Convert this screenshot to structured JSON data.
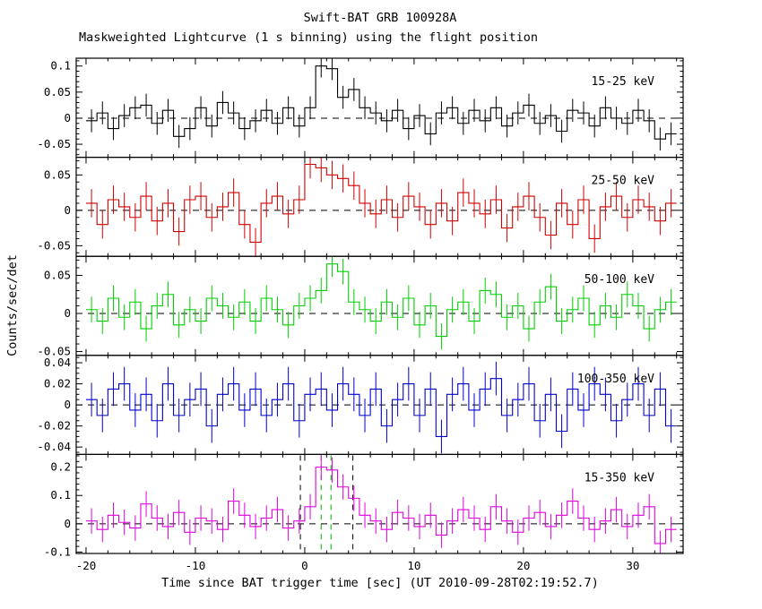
{
  "chart_data": {
    "type": "line",
    "subtype": "step-histogram-lightcurve",
    "title": "Swift-BAT GRB 100928A",
    "subtitle": "Maskweighted Lightcurve (1 s binning) using the flight position",
    "xlabel": "Time since BAT trigger time [sec] (UT 2010-09-28T02:19:52.7)",
    "ylabel": "Counts/sec/det",
    "xlim": [
      -20.9,
      34.6
    ],
    "xticks": [
      -20,
      -10,
      0,
      10,
      20,
      30
    ],
    "xtick_minor_step": 2,
    "bin_width": 1,
    "grid": false,
    "legend_position": "inside-top-right-per-panel",
    "x": [
      -20,
      -19,
      -18,
      -17,
      -16,
      -15,
      -14,
      -13,
      -12,
      -11,
      -10,
      -9,
      -8,
      -7,
      -6,
      -5,
      -4,
      -3,
      -2,
      -1,
      0,
      1,
      2,
      3,
      4,
      5,
      6,
      7,
      8,
      9,
      10,
      11,
      12,
      13,
      14,
      15,
      16,
      17,
      18,
      19,
      20,
      21,
      22,
      23,
      24,
      25,
      26,
      27,
      28,
      29,
      30,
      31,
      32,
      33
    ],
    "panels": [
      {
        "label": "15-25 keV",
        "color": "#000000",
        "ylim": [
          -0.075,
          0.115
        ],
        "yticks": [
          -0.05,
          0,
          0.05,
          0.1
        ],
        "ytick_minor_step": 0.01,
        "yerr": 0.022,
        "values": [
          -0.005,
          0.01,
          -0.02,
          0.005,
          0.02,
          0.025,
          -0.01,
          0.015,
          -0.035,
          -0.02,
          0.02,
          -0.015,
          0.03,
          0.01,
          -0.02,
          -0.005,
          0.015,
          -0.01,
          0.02,
          -0.015,
          0.02,
          0.1,
          0.095,
          0.04,
          0.055,
          0.02,
          0.01,
          -0.005,
          0.015,
          -0.02,
          0.005,
          -0.03,
          0.01,
          0.02,
          -0.01,
          0.015,
          -0.005,
          0.02,
          -0.015,
          0.01,
          0.025,
          -0.01,
          0.005,
          -0.025,
          0.015,
          0.01,
          -0.015,
          0.02,
          0,
          -0.01,
          0.015,
          -0.005,
          -0.04,
          -0.03
        ]
      },
      {
        "label": "25-50 keV",
        "color": "#d00000",
        "ylim": [
          -0.065,
          0.075
        ],
        "yticks": [
          -0.05,
          0,
          0.05
        ],
        "ytick_minor_step": 0.01,
        "yerr": 0.02,
        "values": [
          0.01,
          -0.02,
          0.015,
          0.005,
          -0.01,
          0.02,
          -0.015,
          0.01,
          -0.03,
          0.015,
          0.02,
          -0.01,
          0.005,
          0.025,
          -0.02,
          -0.045,
          0.01,
          0.02,
          -0.005,
          0.015,
          0.065,
          0.06,
          0.05,
          0.045,
          0.035,
          0.01,
          -0.005,
          0.015,
          -0.01,
          0.02,
          0.005,
          -0.02,
          0.01,
          -0.015,
          0.025,
          0.01,
          -0.005,
          0.015,
          -0.025,
          0.005,
          0.02,
          -0.01,
          -0.035,
          0.01,
          -0.02,
          0.015,
          -0.04,
          0.005,
          0.02,
          -0.01,
          0.015,
          0.005,
          -0.015,
          0.01
        ]
      },
      {
        "label": "50-100 keV",
        "color": "#00d000",
        "ylim": [
          -0.055,
          0.075
        ],
        "yticks": [
          -0.05,
          0,
          0.05
        ],
        "ytick_minor_step": 0.01,
        "yerr": 0.017,
        "values": [
          0.005,
          -0.01,
          0.02,
          -0.005,
          0.015,
          -0.02,
          0.01,
          0.025,
          -0.015,
          0.005,
          -0.01,
          0.02,
          0.01,
          -0.005,
          0.015,
          -0.01,
          0.02,
          0.005,
          -0.015,
          0.01,
          0.02,
          0.03,
          0.065,
          0.055,
          0.015,
          0.005,
          -0.01,
          0.015,
          -0.005,
          0.02,
          -0.015,
          0.01,
          -0.03,
          0.005,
          0.015,
          -0.01,
          0.03,
          0.025,
          -0.005,
          0.01,
          -0.02,
          0.015,
          0.035,
          -0.01,
          0.005,
          0.02,
          -0.015,
          0.01,
          -0.005,
          0.025,
          0.01,
          -0.02,
          0.005,
          0.015
        ]
      },
      {
        "label": "100-350 keV",
        "color": "#0000d0",
        "ylim": [
          -0.047,
          0.047
        ],
        "yticks": [
          -0.04,
          -0.02,
          0,
          0.02,
          0.04
        ],
        "ytick_minor_step": 0.005,
        "yerr": 0.016,
        "values": [
          0.005,
          -0.01,
          0.015,
          0.02,
          -0.005,
          0.01,
          -0.015,
          0.02,
          -0.01,
          0.005,
          0.015,
          -0.02,
          0.01,
          0.02,
          -0.005,
          0.015,
          -0.01,
          0.005,
          0.02,
          -0.015,
          0.01,
          0.015,
          -0.005,
          0.02,
          0.01,
          -0.01,
          0.015,
          -0.02,
          0.005,
          0.02,
          -0.01,
          0.015,
          -0.03,
          0.01,
          0.02,
          -0.005,
          0.015,
          0.025,
          -0.01,
          0.005,
          0.02,
          -0.015,
          0.01,
          -0.025,
          0.015,
          -0.005,
          0.02,
          0.01,
          -0.015,
          0.005,
          0.02,
          -0.01,
          0.015,
          -0.02
        ]
      },
      {
        "label": "15-350 keV",
        "color": "#e000e0",
        "ylim": [
          -0.105,
          0.245
        ],
        "yticks": [
          -0.1,
          0,
          0.1,
          0.2
        ],
        "ytick_minor_step": 0.02,
        "yerr": 0.045,
        "values": [
          0.01,
          -0.02,
          0.03,
          0.005,
          -0.015,
          0.07,
          0.02,
          -0.01,
          0.04,
          -0.03,
          0.02,
          0.01,
          -0.02,
          0.08,
          0.03,
          -0.01,
          0.02,
          0.05,
          -0.015,
          0.01,
          0.06,
          0.2,
          0.19,
          0.13,
          0.09,
          0.03,
          0.01,
          -0.02,
          0.04,
          0.02,
          -0.01,
          0.03,
          -0.04,
          0.01,
          0.05,
          0.02,
          -0.02,
          0.06,
          0.01,
          -0.03,
          0.02,
          0.04,
          -0.01,
          0.03,
          0.08,
          0.02,
          -0.02,
          0.01,
          0.05,
          -0.01,
          0.03,
          0.06,
          -0.07,
          -0.02
        ],
        "vlines": [
          {
            "x": -0.4,
            "color": "#000000",
            "style": "dashed"
          },
          {
            "x": 4.4,
            "color": "#000000",
            "style": "dashed"
          },
          {
            "x": 1.5,
            "color": "#00aa00",
            "style": "dashed"
          },
          {
            "x": 2.4,
            "color": "#00aa00",
            "style": "dashed"
          }
        ]
      }
    ]
  }
}
